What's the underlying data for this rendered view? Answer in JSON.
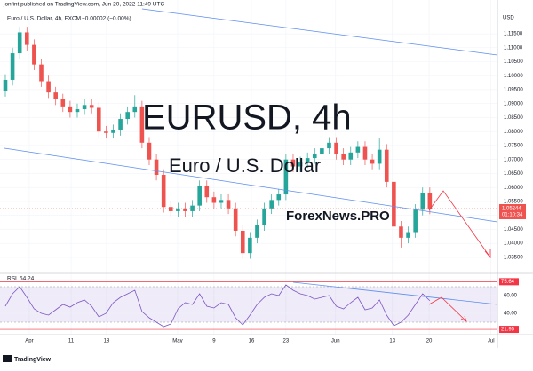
{
  "header": {
    "published": "jonfint published on TradingView.com, Jun 20, 2022 11:49 UTC",
    "symbol": "Euro / U.S. Dollar, 4h, FXCM",
    "change": "−0.00002 (−0.00%)",
    "watermark": "EURUSD, 4h",
    "watermark_sub": "Euro / U.S. Dollar",
    "brand": "ForexNews.PRO",
    "currency": "USD",
    "countdown": "01:10:34",
    "footer": "TradingView"
  },
  "chart_data": {
    "type": "candlestick",
    "colors": {
      "up": "#26a69a",
      "down": "#ef5350",
      "rsi": "#7e57c2",
      "trend": "#5b8def"
    },
    "xlim": [
      -0.74,
      68.4
    ],
    "xticks": [
      {
        "value": 3.33,
        "label": "Apr"
      },
      {
        "value": 9.14,
        "label": "11"
      },
      {
        "value": 14.07,
        "label": "18"
      },
      {
        "value": 23.95,
        "label": "May"
      },
      {
        "value": 29.0,
        "label": "9"
      },
      {
        "value": 34.2,
        "label": "16"
      },
      {
        "value": 39.0,
        "label": "23"
      },
      {
        "value": 45.9,
        "label": "Jun"
      },
      {
        "value": 53.8,
        "label": "13"
      },
      {
        "value": 58.9,
        "label": "20"
      },
      {
        "value": 67.5,
        "label": "Jul"
      }
    ],
    "ylim": [
      1.0302,
      1.1239
    ],
    "yticks": [
      {
        "value": 1.035,
        "label": "1.03500"
      },
      {
        "value": 1.04,
        "label": "1.04000"
      },
      {
        "value": 1.045,
        "label": "1.04500"
      },
      {
        "value": 1.05,
        "label": "1.05000"
      },
      {
        "value": 1.055,
        "label": "1.05500"
      },
      {
        "value": 1.06,
        "label": "1.06000"
      },
      {
        "value": 1.065,
        "label": "1.06500"
      },
      {
        "value": 1.07,
        "label": "1.07000"
      },
      {
        "value": 1.075,
        "label": "1.07500"
      },
      {
        "value": 1.08,
        "label": "1.08000"
      },
      {
        "value": 1.085,
        "label": "1.08500"
      },
      {
        "value": 1.09,
        "label": "1.09000"
      },
      {
        "value": 1.095,
        "label": "1.09500"
      },
      {
        "value": 1.1,
        "label": "1.10000"
      },
      {
        "value": 1.105,
        "label": "1.10500"
      },
      {
        "value": 1.11,
        "label": "1.11000"
      },
      {
        "value": 1.115,
        "label": "1.11500"
      }
    ],
    "grid": true,
    "open": [
      1.0945,
      1.0985,
      1.108,
      1.1155,
      1.111,
      1.104,
      1.098,
      1.094,
      1.0915,
      1.089,
      1.087,
      1.088,
      1.0895,
      1.0885,
      1.08,
      1.0795,
      1.0805,
      1.0845,
      1.087,
      1.089,
      1.076,
      1.07,
      1.0645,
      1.053,
      1.0515,
      1.0525,
      1.0515,
      1.0535,
      1.0605,
      1.0565,
      1.0545,
      1.0555,
      1.0525,
      1.0445,
      1.0365,
      1.042,
      1.0465,
      1.0525,
      1.0555,
      1.0575,
      1.07,
      1.0675,
      1.069,
      1.0705,
      1.072,
      1.074,
      1.076,
      1.072,
      1.07,
      1.0725,
      1.0745,
      1.07,
      1.0685,
      1.0735,
      1.062,
      1.046,
      1.042,
      1.044,
      1.052,
      1.058
    ],
    "high": [
      1.1005,
      1.11,
      1.1175,
      1.1175,
      1.113,
      1.106,
      1.1,
      1.096,
      1.0935,
      1.091,
      1.09,
      1.0915,
      1.0915,
      1.0905,
      1.082,
      1.0825,
      1.0865,
      1.089,
      1.093,
      1.091,
      1.078,
      1.072,
      1.0665,
      1.055,
      1.0545,
      1.0545,
      1.0555,
      1.0625,
      1.0625,
      1.0585,
      1.0575,
      1.0575,
      1.0545,
      1.0465,
      1.044,
      1.0485,
      1.0545,
      1.0575,
      1.0595,
      1.072,
      1.072,
      1.071,
      1.0725,
      1.074,
      1.076,
      1.078,
      1.078,
      1.074,
      1.0745,
      1.0765,
      1.0765,
      1.072,
      1.0775,
      1.0755,
      1.064,
      1.048,
      1.046,
      1.054,
      1.06,
      1.06
    ],
    "low": [
      1.0925,
      1.0965,
      1.106,
      1.109,
      1.102,
      1.096,
      1.092,
      1.0895,
      1.087,
      1.085,
      1.085,
      1.086,
      1.0865,
      1.078,
      1.0775,
      1.0775,
      1.0785,
      1.0825,
      1.085,
      1.074,
      1.068,
      1.0625,
      1.051,
      1.0495,
      1.0495,
      1.0495,
      1.0495,
      1.0515,
      1.0545,
      1.0525,
      1.0525,
      1.0505,
      1.0425,
      1.0345,
      1.0345,
      1.04,
      1.0445,
      1.0505,
      1.0535,
      1.0555,
      1.0655,
      1.0655,
      1.067,
      1.0685,
      1.07,
      1.072,
      1.07,
      1.068,
      1.068,
      1.0705,
      1.068,
      1.0665,
      1.0665,
      1.06,
      1.044,
      1.0385,
      1.04,
      1.042,
      1.05,
      1.0504
    ],
    "close": [
      1.0985,
      1.108,
      1.1155,
      1.111,
      1.104,
      1.098,
      1.094,
      1.0915,
      1.089,
      1.087,
      1.088,
      1.0895,
      1.0885,
      1.08,
      1.0795,
      1.0805,
      1.0845,
      1.087,
      1.089,
      1.076,
      1.07,
      1.0645,
      1.053,
      1.0515,
      1.0525,
      1.0515,
      1.0535,
      1.0605,
      1.0565,
      1.0545,
      1.0555,
      1.0525,
      1.0445,
      1.0365,
      1.042,
      1.0465,
      1.0525,
      1.0555,
      1.0575,
      1.07,
      1.0675,
      1.069,
      1.0705,
      1.072,
      1.074,
      1.076,
      1.072,
      1.07,
      1.0725,
      1.0745,
      1.07,
      1.0685,
      1.0735,
      1.062,
      1.046,
      1.042,
      1.044,
      1.052,
      1.058,
      1.05244
    ],
    "rsi": {
      "name": "RSI",
      "ylim": [
        18,
        81
      ],
      "yticks": [
        {
          "value": 40,
          "label": "40.00"
        },
        {
          "value": 60,
          "label": "60.00"
        }
      ],
      "band": [
        30,
        70
      ],
      "upper_mark": 75.64,
      "lower_mark": 21.95,
      "values": [
        48,
        62,
        70,
        58,
        45,
        40,
        38,
        44,
        50,
        47,
        52,
        55,
        48,
        36,
        40,
        52,
        58,
        62,
        66,
        42,
        35,
        30,
        25,
        28,
        45,
        52,
        50,
        62,
        48,
        46,
        52,
        50,
        35,
        27,
        38,
        50,
        58,
        62,
        60,
        72,
        66,
        62,
        60,
        56,
        58,
        60,
        48,
        45,
        52,
        58,
        44,
        46,
        55,
        38,
        26,
        30,
        38,
        50,
        62,
        54.24
      ]
    }
  }
}
